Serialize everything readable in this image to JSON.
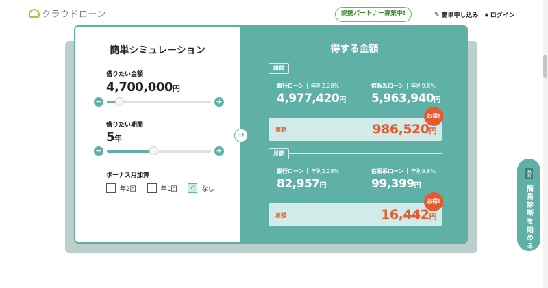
{
  "header": {
    "logo": "クラウドローン",
    "partner": "提携パートナー募集中!",
    "apply": "簡単申し込み",
    "login": "ログイン"
  },
  "sim": {
    "title": "簡単シミュレーション",
    "amount": {
      "label": "借りたい金額",
      "value": "4,700,000",
      "unit": "円",
      "level": 0.12
    },
    "period": {
      "label": "借りたい期間",
      "value": "5",
      "unit": "年",
      "level": 0.45
    },
    "bonus": {
      "label": "ボーナス月加算",
      "options": [
        {
          "label": "年2回",
          "checked": false
        },
        {
          "label": "年1回",
          "checked": false
        },
        {
          "label": "なし",
          "checked": true
        }
      ]
    }
  },
  "result": {
    "title": "得する金額",
    "sections": [
      {
        "tag": "総額",
        "bank": {
          "name": "銀行ローン",
          "rate": "年利2.28%",
          "value": "4,977,420"
        },
        "shinpan": {
          "name": "信販系ローン",
          "rate": "年利9.8%",
          "value": "5,963,940"
        },
        "diff_label": "差額",
        "diff": "986,520"
      },
      {
        "tag": "月額",
        "bank": {
          "name": "銀行ローン",
          "rate": "年利2.28%",
          "value": "82,957"
        },
        "shinpan": {
          "name": "信販系ローン",
          "rate": "年利9.8%",
          "value": "99,399"
        },
        "diff_label": "差額",
        "diff": "16,442"
      }
    ],
    "unit": "円",
    "badge": "お得!"
  },
  "fab": {
    "free": "無料",
    "label": "簡易診断を始める"
  },
  "colors": {
    "accent": "#5fb0a6",
    "highlight": "#e65a2e"
  }
}
